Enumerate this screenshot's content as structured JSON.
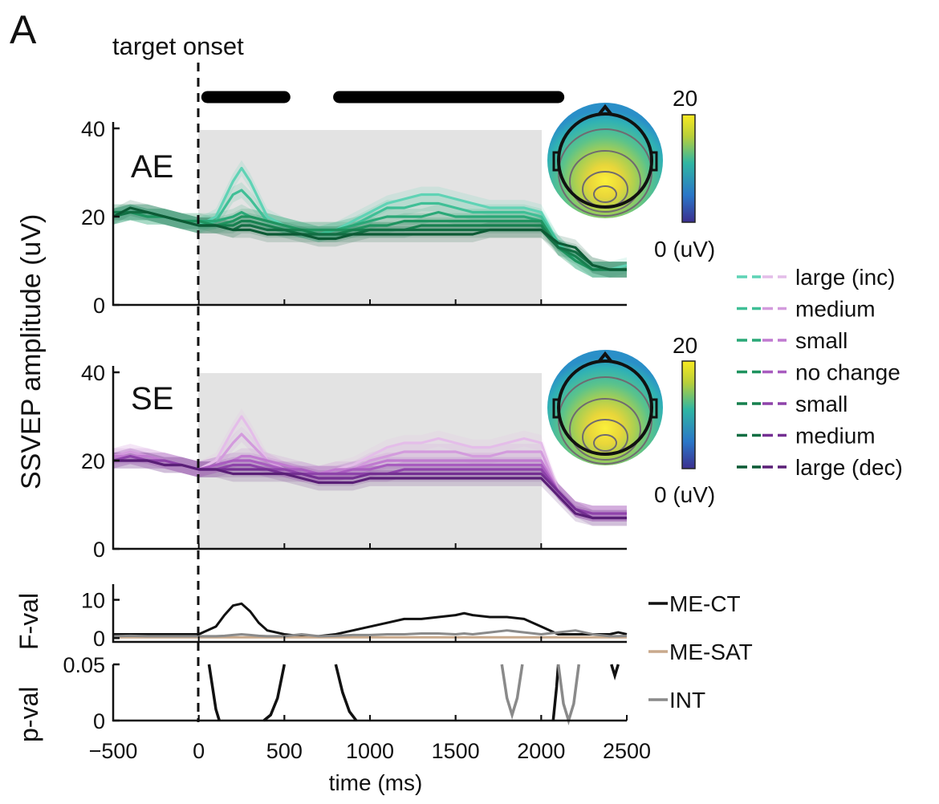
{
  "panel_letter": "A",
  "onset_label": "target onset",
  "ylabel_main": "SSVEP amplitude (uV)",
  "xlabel": "time (ms)",
  "colors": {
    "green": [
      "#5fd3b5",
      "#3fbf96",
      "#2aa877",
      "#1f935f",
      "#17804f",
      "#126e43",
      "#0c5a35"
    ],
    "purple": [
      "#e4bde9",
      "#d39bdd",
      "#c07ad0",
      "#a85cbf",
      "#8e43aa",
      "#742f92",
      "#5a1f77"
    ],
    "me_ct": "#111111",
    "me_sat": "#c8a98c",
    "int": "#8a8a8a",
    "sig_bar": "#000000",
    "shade": "#e3e3e3"
  },
  "chart_data": [
    {
      "type": "line",
      "panel": "AE",
      "title": "AE",
      "x": [
        -500,
        -400,
        -300,
        -200,
        -100,
        0,
        100,
        200,
        250,
        300,
        400,
        500,
        600,
        700,
        800,
        900,
        1000,
        1100,
        1200,
        1300,
        1400,
        1500,
        1600,
        1700,
        1800,
        1900,
        2000,
        2100,
        2200,
        2300,
        2400,
        2500
      ],
      "series": [
        {
          "name": "large (inc)",
          "color_index": 0,
          "values": [
            20,
            21,
            21,
            20,
            19,
            18,
            20,
            28,
            31,
            28,
            20,
            18,
            17,
            16,
            17,
            19,
            21,
            23,
            24,
            25,
            25,
            24,
            23,
            22,
            22,
            22,
            21,
            14,
            10,
            8,
            8,
            9
          ]
        },
        {
          "name": "medium",
          "color_index": 1,
          "values": [
            20,
            21,
            20,
            20,
            19,
            18,
            19,
            25,
            26,
            24,
            19,
            18,
            17,
            16,
            17,
            18,
            20,
            22,
            22,
            23,
            23,
            22,
            21,
            21,
            21,
            21,
            20,
            14,
            10,
            8,
            8,
            8
          ]
        },
        {
          "name": "small",
          "color_index": 2,
          "values": [
            21,
            21,
            20,
            20,
            19,
            19,
            19,
            20,
            21,
            20,
            19,
            18,
            17,
            17,
            17,
            18,
            19,
            20,
            20,
            20,
            21,
            20,
            20,
            20,
            20,
            20,
            19,
            13,
            10,
            8,
            8,
            8
          ]
        },
        {
          "name": "no change",
          "color_index": 3,
          "values": [
            20,
            21,
            20,
            20,
            19,
            19,
            18,
            19,
            20,
            20,
            19,
            18,
            17,
            17,
            17,
            17,
            18,
            18,
            19,
            19,
            19,
            19,
            19,
            19,
            19,
            19,
            19,
            13,
            10,
            8,
            8,
            8
          ]
        },
        {
          "name": "small",
          "color_index": 4,
          "values": [
            21,
            21,
            21,
            20,
            19,
            18,
            18,
            18,
            19,
            19,
            18,
            17,
            17,
            16,
            16,
            17,
            17,
            17,
            17,
            18,
            18,
            18,
            18,
            18,
            18,
            18,
            18,
            13,
            11,
            8,
            8,
            8
          ]
        },
        {
          "name": "medium",
          "color_index": 5,
          "values": [
            20,
            21,
            21,
            20,
            19,
            18,
            18,
            17,
            18,
            18,
            17,
            17,
            16,
            16,
            16,
            16,
            17,
            17,
            17,
            17,
            17,
            17,
            17,
            17,
            17,
            17,
            17,
            13,
            12,
            9,
            8,
            8
          ]
        },
        {
          "name": "large (dec)",
          "color_index": 6,
          "values": [
            20,
            22,
            21,
            20,
            19,
            18,
            18,
            17,
            17,
            17,
            16,
            16,
            16,
            15,
            15,
            16,
            16,
            16,
            16,
            16,
            16,
            16,
            16,
            17,
            17,
            17,
            17,
            14,
            13,
            9,
            8,
            8
          ]
        }
      ],
      "yticks": [
        0,
        20,
        40
      ],
      "xlim": [
        -500,
        2500
      ],
      "ylim": [
        0,
        40
      ],
      "shaded_interval": [
        0,
        2000
      ],
      "inset": {
        "colorbar_max": "20",
        "colorbar_min": "0 (uV)"
      }
    },
    {
      "type": "line",
      "panel": "SE",
      "title": "SE",
      "x": [
        -500,
        -400,
        -300,
        -200,
        -100,
        0,
        100,
        200,
        250,
        300,
        400,
        500,
        600,
        700,
        800,
        900,
        1000,
        1100,
        1200,
        1300,
        1400,
        1500,
        1600,
        1700,
        1800,
        1900,
        2000,
        2100,
        2200,
        2300,
        2400,
        2500
      ],
      "series": [
        {
          "name": "large (inc)",
          "color_index": 0,
          "values": [
            21,
            22,
            21,
            20,
            19,
            18,
            20,
            27,
            30,
            27,
            20,
            18,
            17,
            17,
            18,
            19,
            21,
            23,
            24,
            24,
            25,
            24,
            23,
            23,
            24,
            25,
            24,
            13,
            9,
            8,
            8,
            8
          ]
        },
        {
          "name": "medium",
          "color_index": 1,
          "values": [
            21,
            22,
            21,
            20,
            19,
            18,
            19,
            24,
            26,
            24,
            20,
            18,
            17,
            17,
            17,
            18,
            20,
            21,
            22,
            22,
            22,
            22,
            21,
            21,
            22,
            22,
            22,
            13,
            9,
            8,
            8,
            8
          ]
        },
        {
          "name": "small",
          "color_index": 2,
          "values": [
            21,
            21,
            21,
            20,
            19,
            18,
            19,
            20,
            21,
            21,
            20,
            19,
            18,
            17,
            18,
            18,
            19,
            20,
            20,
            20,
            20,
            20,
            20,
            20,
            20,
            20,
            20,
            13,
            9,
            8,
            8,
            8
          ]
        },
        {
          "name": "no change",
          "color_index": 3,
          "values": [
            20,
            21,
            20,
            20,
            19,
            18,
            19,
            20,
            20,
            20,
            19,
            18,
            18,
            17,
            17,
            18,
            18,
            19,
            19,
            19,
            19,
            19,
            19,
            19,
            19,
            19,
            19,
            13,
            9,
            8,
            8,
            8
          ]
        },
        {
          "name": "small",
          "color_index": 4,
          "values": [
            20,
            21,
            20,
            20,
            19,
            18,
            18,
            19,
            19,
            19,
            18,
            18,
            17,
            17,
            17,
            17,
            17,
            17,
            18,
            18,
            18,
            18,
            18,
            18,
            18,
            18,
            18,
            13,
            9,
            8,
            8,
            8
          ]
        },
        {
          "name": "medium",
          "color_index": 5,
          "values": [
            20,
            20,
            20,
            19,
            19,
            18,
            18,
            18,
            18,
            18,
            18,
            17,
            17,
            16,
            16,
            16,
            17,
            17,
            17,
            17,
            17,
            17,
            17,
            17,
            17,
            17,
            17,
            13,
            9,
            7,
            7,
            7
          ]
        },
        {
          "name": "large (dec)",
          "color_index": 6,
          "values": [
            20,
            20,
            20,
            19,
            19,
            18,
            18,
            17,
            17,
            17,
            17,
            17,
            16,
            15,
            15,
            15,
            16,
            16,
            16,
            16,
            16,
            16,
            16,
            16,
            16,
            16,
            16,
            12,
            8,
            7,
            7,
            7
          ]
        }
      ],
      "yticks": [
        0,
        20,
        40
      ],
      "xlim": [
        -500,
        2500
      ],
      "ylim": [
        0,
        40
      ],
      "shaded_interval": [
        0,
        2000
      ],
      "inset": {
        "colorbar_max": "20",
        "colorbar_min": "0 (uV)"
      }
    },
    {
      "type": "line",
      "panel": "F-val",
      "ylabel": "F-val",
      "x": [
        -500,
        -400,
        -300,
        -200,
        -100,
        0,
        100,
        150,
        200,
        250,
        300,
        350,
        400,
        500,
        600,
        700,
        800,
        900,
        1000,
        1100,
        1200,
        1300,
        1400,
        1500,
        1550,
        1600,
        1700,
        1800,
        1900,
        2000,
        2100,
        2200,
        2300,
        2400,
        2450,
        2500
      ],
      "series": [
        {
          "name": "ME-CT",
          "color_key": "me_ct",
          "values": [
            1,
            1,
            1,
            1,
            1,
            1,
            3,
            6,
            8.5,
            9,
            7,
            4,
            2,
            1,
            0.5,
            0.5,
            1,
            2,
            3,
            4,
            5,
            5,
            5.5,
            6,
            6.5,
            6,
            5.5,
            5.5,
            5,
            3,
            1,
            1,
            1,
            1,
            1.5,
            1
          ]
        },
        {
          "name": "ME-SAT",
          "color_key": "me_sat",
          "values": [
            0.2,
            0.2,
            0.2,
            0.2,
            0.2,
            0.2,
            0.2,
            0.2,
            0.2,
            0.2,
            0.2,
            0.2,
            0.2,
            0.2,
            0.2,
            0.2,
            0.2,
            0.2,
            0.2,
            0.2,
            0.2,
            0.2,
            0.2,
            0.2,
            0.2,
            0.2,
            0.2,
            0.2,
            0.2,
            0.2,
            0.2,
            0.2,
            0.2,
            0.2,
            0.2,
            0.2
          ]
        },
        {
          "name": "INT",
          "color_key": "int",
          "values": [
            0.5,
            0.6,
            0.5,
            0.5,
            0.5,
            0.5,
            0.5,
            0.6,
            0.8,
            1,
            0.8,
            0.6,
            0.5,
            0.5,
            1,
            0.5,
            0.6,
            0.8,
            0.8,
            1,
            1,
            1.2,
            1.2,
            1,
            1.2,
            1,
            1.5,
            2,
            1.5,
            1,
            1.5,
            2,
            1,
            0.5,
            0.5,
            0.6
          ]
        }
      ],
      "yticks": [
        0,
        10
      ],
      "xlim": [
        -500,
        2500
      ],
      "ylim": [
        -1,
        12
      ]
    },
    {
      "type": "line",
      "panel": "p-val",
      "ylabel": "p-val",
      "xlabel": "time (ms)",
      "segments": [
        {
          "color_key": "me_ct",
          "x": [
            60,
            80,
            100,
            120
          ],
          "y": [
            0.05,
            0.03,
            0.01,
            0
          ]
        },
        {
          "color_key": "me_ct",
          "x": [
            380,
            420,
            460,
            500
          ],
          "y": [
            0,
            0.005,
            0.02,
            0.05
          ]
        },
        {
          "color_key": "me_ct",
          "x": [
            800,
            840,
            880,
            920
          ],
          "y": [
            0.05,
            0.025,
            0.008,
            0
          ]
        },
        {
          "color_key": "int",
          "x": [
            1770,
            1800,
            1830,
            1860,
            1890
          ],
          "y": [
            0.05,
            0.02,
            0.005,
            0.02,
            0.05
          ]
        },
        {
          "color_key": "me_ct",
          "x": [
            2070,
            2080,
            2090,
            2100
          ],
          "y": [
            0,
            0.015,
            0.03,
            0.05
          ]
        },
        {
          "color_key": "int",
          "x": [
            2100,
            2130,
            2160,
            2190,
            2220
          ],
          "y": [
            0.05,
            0.015,
            0,
            0.015,
            0.05
          ]
        },
        {
          "color_key": "me_ct",
          "x": [
            2410,
            2430,
            2450
          ],
          "y": [
            0.05,
            0.04,
            0.05
          ]
        }
      ],
      "yticks": [
        0,
        0.05
      ],
      "xticks": [
        -500,
        0,
        500,
        1000,
        1500,
        2000,
        2500
      ],
      "xlim": [
        -500,
        2500
      ],
      "ylim": [
        0,
        0.05
      ]
    }
  ],
  "significance_bars": [
    [
      50,
      500
    ],
    [
      820,
      2100
    ]
  ],
  "legend_conditions": [
    "large (inc)",
    "medium",
    "small",
    "no change",
    "small",
    "medium",
    "large (dec)"
  ],
  "legend_stats": [
    "ME-CT",
    "ME-SAT",
    "INT"
  ]
}
